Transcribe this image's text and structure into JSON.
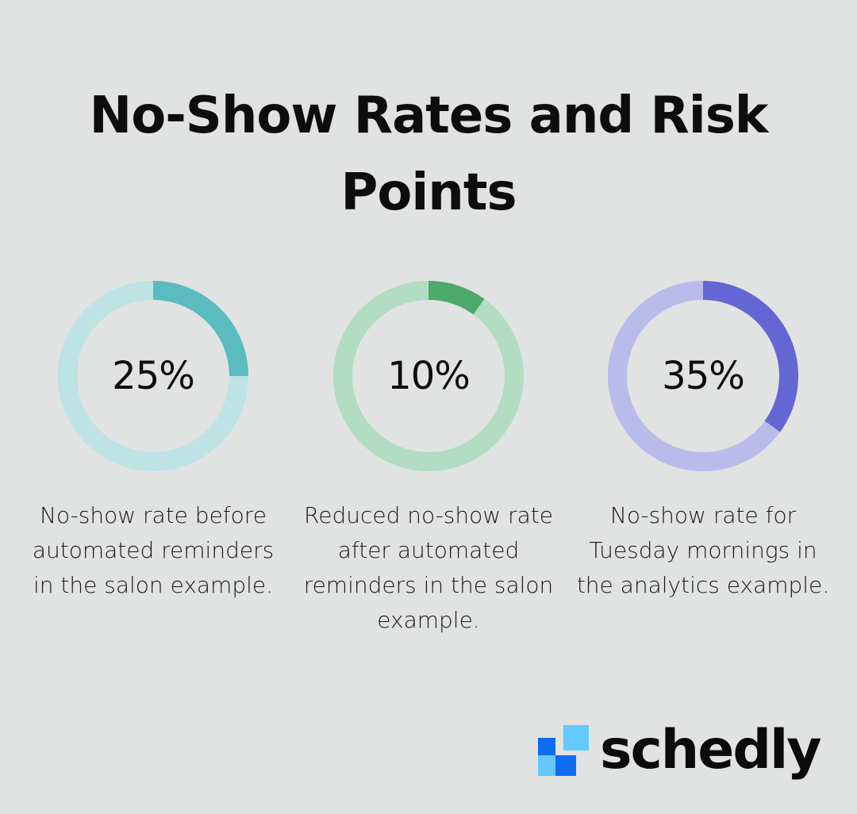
{
  "title": "No-Show Rates and Risk Points",
  "colors": {
    "background": "#e1e3e2",
    "teal_fill": "#5bbcc0",
    "teal_track": "#bde3e5",
    "green_fill": "#4caa6c",
    "green_track": "#b2ddc2",
    "purple_fill": "#6466d3",
    "purple_track": "#b9bbea",
    "brand_dark_blue": "#0d6cf2",
    "brand_light_blue": "#63c9ff"
  },
  "chart_data": [
    {
      "type": "pie",
      "variant": "donut",
      "value": 25,
      "max": 100,
      "label": "25%",
      "description": "No-show rate before automated reminders in the salon example.",
      "fill_color": "#5bbcc0",
      "track_color": "#bde3e5"
    },
    {
      "type": "pie",
      "variant": "donut",
      "value": 10,
      "max": 100,
      "label": "10%",
      "description": "Reduced no-show rate after automated reminders in the salon example.",
      "fill_color": "#4caa6c",
      "track_color": "#b2ddc2"
    },
    {
      "type": "pie",
      "variant": "donut",
      "value": 35,
      "max": 100,
      "label": "35%",
      "description": "No-show rate for Tuesday mornings in the analytics example.",
      "fill_color": "#6466d3",
      "track_color": "#b9bbea"
    }
  ],
  "brand": {
    "name": "schedly",
    "logo_icon": "schedly-logo-icon"
  }
}
